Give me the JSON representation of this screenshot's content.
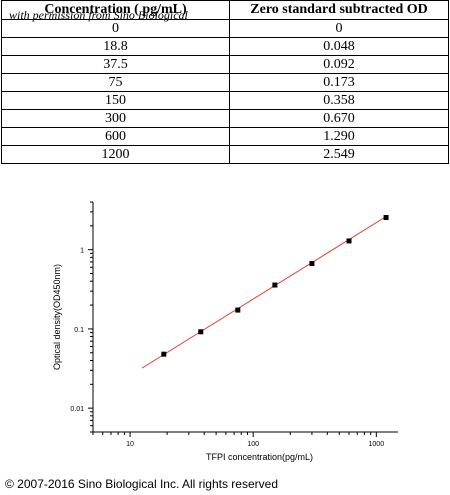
{
  "watermark": "with permission from Sino Biological",
  "table": {
    "headers": [
      "Concentration ( pg/mL)",
      "Zero standard subtracted OD"
    ],
    "rows": [
      [
        "0",
        "0"
      ],
      [
        "18.8",
        "0.048"
      ],
      [
        "37.5",
        "0.092"
      ],
      [
        "75",
        "0.173"
      ],
      [
        "150",
        "0.358"
      ],
      [
        "300",
        "0.670"
      ],
      [
        "600",
        "1.290"
      ],
      [
        "1200",
        "2.549"
      ]
    ]
  },
  "chart_data": {
    "type": "scatter",
    "xlabel": "TFPI concentration(pg/mL)",
    "ylabel": "Optical density(OD450nm)",
    "x_scale": "log",
    "y_scale": "log",
    "xlim": [
      5,
      1500
    ],
    "ylim": [
      0.005,
      4
    ],
    "x_ticks": [
      10,
      100,
      1000
    ],
    "x_tick_labels": [
      "10",
      "100",
      "1000"
    ],
    "y_ticks": [
      0.01,
      0.1,
      1
    ],
    "y_tick_labels": [
      "0.01",
      "0.1",
      "1"
    ],
    "grid": false,
    "points": {
      "x": [
        18.8,
        37.5,
        75,
        150,
        300,
        600,
        1200
      ],
      "y": [
        0.048,
        0.092,
        0.173,
        0.358,
        0.67,
        1.29,
        2.549
      ],
      "color": "#000000"
    },
    "fit_line": {
      "x": [
        12.5,
        1210
      ],
      "y": [
        0.032,
        2.64
      ],
      "color": "#e8392b"
    }
  },
  "copyright": "© 2007-2016 Sino Biological Inc. All rights reserved"
}
